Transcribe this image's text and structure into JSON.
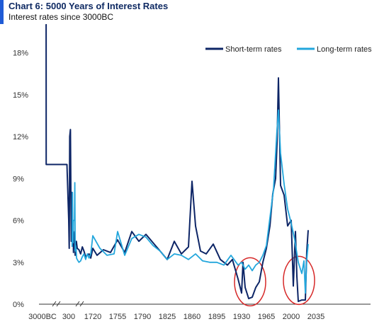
{
  "chart_data": {
    "type": "line",
    "title": "Chart 6: 5000 Years of Interest Rates",
    "subtitle": "Interest rates since 3000BC",
    "xlabel": "",
    "ylabel": "",
    "ylim": [
      0,
      20
    ],
    "y_ticks": [
      "0%",
      "3%",
      "6%",
      "9%",
      "12%",
      "15%",
      "18%"
    ],
    "y_tick_values": [
      0,
      3,
      6,
      9,
      12,
      15,
      18
    ],
    "x_ticks": [
      "3000BC",
      "300",
      "1720",
      "1755",
      "1790",
      "1825",
      "1860",
      "1895",
      "1930",
      "1965",
      "2000",
      "2035"
    ],
    "axis_breaks": true,
    "legend_position": "top-right",
    "colors": {
      "short": "#0d2566",
      "long": "#22a6dc",
      "circle": "#d62828"
    },
    "annotations": [
      {
        "type": "circle",
        "label": "",
        "x_center": 1942,
        "y_center": 1.6
      },
      {
        "type": "circle",
        "label": "",
        "x_center": 2011,
        "y_center": 1.7
      }
    ],
    "series": [
      {
        "name": "Short-term rates",
        "key": "short",
        "x": [
          "3000BC",
          "-2500",
          "-2000",
          "-1500",
          "-1000",
          "-500",
          "0",
          "200",
          "300",
          "330",
          "360",
          "400",
          "450",
          "500",
          "540",
          "560",
          "580",
          "620",
          "660",
          "680",
          "700",
          "720",
          "750",
          "800",
          "900",
          "1000",
          "1100",
          "1200",
          "1300",
          "1400",
          "1500",
          "1600",
          "1720",
          "1726",
          "1735",
          "1745",
          "1755",
          "1765",
          "1775",
          "1785",
          "1795",
          "1805",
          "1815",
          "1825",
          "1835",
          "1845",
          "1855",
          "1860",
          "1865",
          "1872",
          "1880",
          "1890",
          "1900",
          "1910",
          "1917",
          "1925",
          "1930",
          "1932",
          "1935",
          "1940",
          "1945",
          "1950",
          "1955",
          "1960",
          "1965",
          "1970",
          "1974",
          "1978",
          "1980",
          "1982",
          "1985",
          "1990",
          "1995",
          "2000",
          "2003",
          "2006",
          "2008",
          "2010",
          "2015",
          "2020",
          "2022",
          "2024"
        ],
        "y": [
          20,
          20,
          20,
          10,
          10,
          10,
          10,
          10,
          6,
          4,
          12,
          12.5,
          4.5,
          8,
          4.2,
          5.5,
          3.7,
          4.8,
          5.2,
          3.5,
          4.2,
          3.8,
          4.5,
          4,
          3.9,
          3.6,
          4.1,
          3.8,
          3.4,
          3.5,
          3.6,
          3.3,
          4,
          3.5,
          3.9,
          3.7,
          4.6,
          3.7,
          5.2,
          4.5,
          5,
          4.4,
          3.8,
          3.2,
          4.5,
          3.6,
          4.1,
          8.8,
          5.6,
          3.8,
          3.6,
          4.3,
          3.2,
          2.8,
          3.2,
          1.8,
          0.8,
          3,
          1.2,
          0.4,
          0.5,
          1.2,
          1.6,
          3,
          4,
          5.6,
          7.9,
          9,
          11.5,
          16.2,
          8.5,
          7.8,
          5.6,
          6,
          1.3,
          5.2,
          2,
          0.2,
          0.3,
          0.3,
          3.8,
          5.3
        ]
      },
      {
        "name": "Long-term rates",
        "key": "long",
        "x": [
          "500",
          "520",
          "540",
          "560",
          "580",
          "600",
          "620",
          "640",
          "660",
          "680",
          "700",
          "720",
          "740",
          "760",
          "800",
          "900",
          "1000",
          "1100",
          "1200",
          "1300",
          "1400",
          "1500",
          "1600",
          "1720",
          "1730",
          "1740",
          "1750",
          "1755",
          "1765",
          "1775",
          "1785",
          "1795",
          "1805",
          "1815",
          "1825",
          "1835",
          "1845",
          "1855",
          "1865",
          "1875",
          "1885",
          "1895",
          "1905",
          "1915",
          "1925",
          "1930",
          "1935",
          "1940",
          "1945",
          "1950",
          "1955",
          "1960",
          "1965",
          "1970",
          "1975",
          "1980",
          "1982",
          "1985",
          "1990",
          "1995",
          "2000",
          "2005",
          "2010",
          "2015",
          "2018",
          "2020",
          "2022",
          "2024"
        ],
        "y": [
          4.1,
          8,
          4.6,
          4.4,
          6,
          6,
          6,
          6,
          8.7,
          3.8,
          4.2,
          4,
          3.9,
          3.3,
          3.2,
          3,
          3.1,
          3.4,
          3.6,
          3.2,
          3.6,
          3.3,
          3.6,
          4.9,
          4,
          3.5,
          3.6,
          5.2,
          3.5,
          4.7,
          5,
          4.8,
          4.2,
          3.8,
          3.2,
          3.6,
          3.5,
          3.2,
          3.6,
          3.1,
          3,
          3,
          2.8,
          3.5,
          2.8,
          3,
          2.5,
          2.8,
          2.4,
          2.8,
          3,
          3.5,
          4.2,
          6.2,
          8.2,
          12.5,
          13.9,
          10.8,
          8.6,
          6.8,
          5.8,
          4.6,
          3,
          2.2,
          3.1,
          0.8,
          3.2,
          4.3
        ]
      }
    ]
  }
}
